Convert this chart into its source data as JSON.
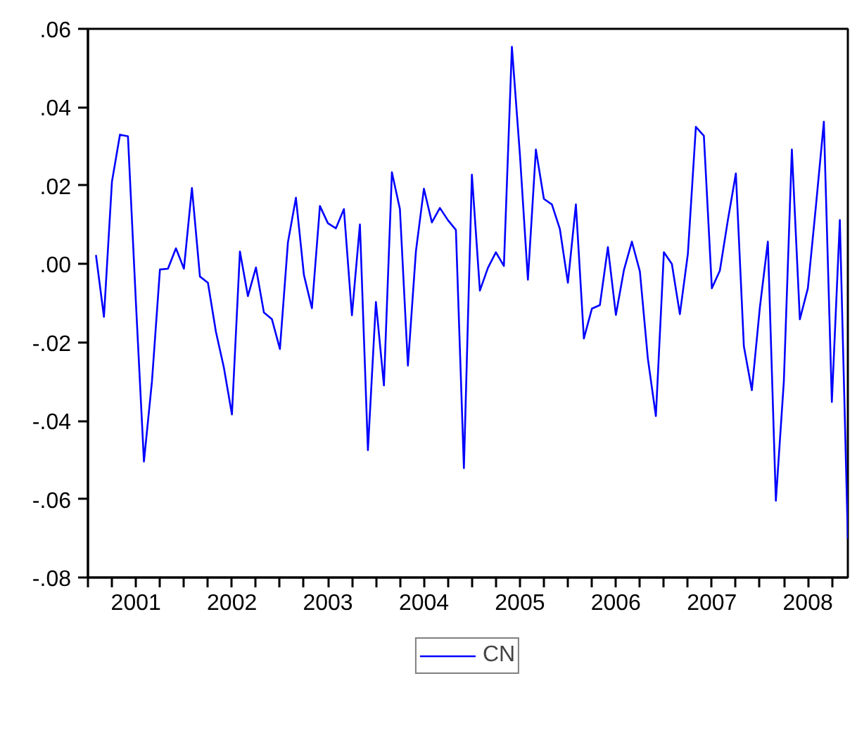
{
  "chart_data": {
    "type": "line",
    "x": [
      "2001-02",
      "2001-03",
      "2001-04",
      "2001-05",
      "2001-06",
      "2001-07",
      "2001-08",
      "2001-09",
      "2001-10",
      "2001-11",
      "2001-12",
      "2002-01",
      "2002-02",
      "2002-03",
      "2002-04",
      "2002-05",
      "2002-06",
      "2002-07",
      "2002-08",
      "2002-09",
      "2002-10",
      "2002-11",
      "2002-12",
      "2003-01",
      "2003-02",
      "2003-03",
      "2003-04",
      "2003-05",
      "2003-06",
      "2003-07",
      "2003-08",
      "2003-09",
      "2003-10",
      "2003-11",
      "2003-12",
      "2004-01",
      "2004-02",
      "2004-03",
      "2004-04",
      "2004-05",
      "2004-06",
      "2004-07",
      "2004-08",
      "2004-09",
      "2004-10",
      "2004-11",
      "2004-12",
      "2005-01",
      "2005-02",
      "2005-03",
      "2005-04",
      "2005-05",
      "2005-06",
      "2005-07",
      "2005-08",
      "2005-09",
      "2005-10",
      "2005-11",
      "2005-12",
      "2006-01",
      "2006-02",
      "2006-03",
      "2006-04",
      "2006-05",
      "2006-06",
      "2006-07",
      "2006-08",
      "2006-09",
      "2006-10",
      "2006-11",
      "2006-12",
      "2007-01",
      "2007-02",
      "2007-03",
      "2007-04",
      "2007-05",
      "2007-06",
      "2007-07",
      "2007-08",
      "2007-09",
      "2007-10",
      "2007-11",
      "2007-12",
      "2008-01",
      "2008-02",
      "2008-03",
      "2008-04",
      "2008-05",
      "2008-06",
      "2008-07",
      "2008-08",
      "2008-09",
      "2008-10",
      "2008-11",
      "2008-12"
    ],
    "series": [
      {
        "name": "CN",
        "color": "#0000ff",
        "values": [
          0.0023,
          -0.0135,
          0.021,
          0.033,
          0.0326,
          -0.01,
          -0.0504,
          -0.03,
          -0.0014,
          -0.0012,
          0.004,
          -0.0012,
          0.0194,
          -0.0032,
          -0.0048,
          -0.0173,
          -0.0265,
          -0.0384,
          0.0032,
          -0.0082,
          -0.0009,
          -0.0124,
          -0.0141,
          -0.0217,
          0.0055,
          0.0169,
          -0.0028,
          -0.0113,
          0.0148,
          0.0104,
          0.0091,
          0.014,
          -0.0131,
          0.0101,
          -0.0475,
          -0.0097,
          -0.031,
          0.0234,
          0.014,
          -0.0259,
          0.0032,
          0.0192,
          0.0106,
          0.0143,
          0.0112,
          0.0087,
          -0.0521,
          0.0228,
          -0.0068,
          -0.001,
          0.003,
          -0.0005,
          0.0554,
          0.028,
          -0.004,
          0.0292,
          0.0166,
          0.0152,
          0.0089,
          -0.0048,
          0.0152,
          -0.019,
          -0.0114,
          -0.0105,
          0.0043,
          -0.013,
          -0.0016,
          0.0057,
          -0.0019,
          -0.0242,
          -0.0388,
          0.003,
          0.0,
          -0.0128,
          0.0026,
          0.035,
          0.0327,
          -0.0062,
          -0.0017,
          0.0112,
          0.0231,
          -0.021,
          -0.0322,
          -0.0111,
          0.0057,
          -0.0604,
          -0.0299,
          0.0292,
          -0.0141,
          -0.0062,
          0.0146,
          0.0363,
          -0.0352,
          0.0112,
          -0.0701
        ]
      }
    ],
    "xlim": [
      "2001-01",
      "2008-12"
    ],
    "xticks": [
      {
        "value": "2001-01",
        "label": null
      },
      {
        "value": "2001-04",
        "label": null
      },
      {
        "value": "2001-07",
        "label": "2001"
      },
      {
        "value": "2001-10",
        "label": null
      },
      {
        "value": "2002-01",
        "label": null
      },
      {
        "value": "2002-04",
        "label": null
      },
      {
        "value": "2002-07",
        "label": "2002"
      },
      {
        "value": "2002-10",
        "label": null
      },
      {
        "value": "2003-01",
        "label": null
      },
      {
        "value": "2003-04",
        "label": null
      },
      {
        "value": "2003-07",
        "label": "2003"
      },
      {
        "value": "2003-10",
        "label": null
      },
      {
        "value": "2004-01",
        "label": null
      },
      {
        "value": "2004-04",
        "label": null
      },
      {
        "value": "2004-07",
        "label": "2004"
      },
      {
        "value": "2004-10",
        "label": null
      },
      {
        "value": "2005-01",
        "label": null
      },
      {
        "value": "2005-04",
        "label": null
      },
      {
        "value": "2005-07",
        "label": "2005"
      },
      {
        "value": "2005-10",
        "label": null
      },
      {
        "value": "2006-01",
        "label": null
      },
      {
        "value": "2006-04",
        "label": null
      },
      {
        "value": "2006-07",
        "label": "2006"
      },
      {
        "value": "2006-10",
        "label": null
      },
      {
        "value": "2007-01",
        "label": null
      },
      {
        "value": "2007-04",
        "label": null
      },
      {
        "value": "2007-07",
        "label": "2007"
      },
      {
        "value": "2007-10",
        "label": null
      },
      {
        "value": "2008-01",
        "label": null
      },
      {
        "value": "2008-04",
        "label": null
      },
      {
        "value": "2008-07",
        "label": "2008"
      },
      {
        "value": "2008-10",
        "label": null
      }
    ],
    "ylim": [
      -0.08,
      0.06
    ],
    "yticks": [
      {
        "value": -0.08,
        "label": "-.08"
      },
      {
        "value": -0.06,
        "label": "-.06"
      },
      {
        "value": -0.04,
        "label": "-.04"
      },
      {
        "value": -0.02,
        "label": "-.02"
      },
      {
        "value": 0.0,
        "label": ".00"
      },
      {
        "value": 0.02,
        "label": ".02"
      },
      {
        "value": 0.04,
        "label": ".04"
      },
      {
        "value": 0.06,
        "label": ".06"
      }
    ],
    "grid": false,
    "legend": "bottom",
    "marker": "none",
    "line_style": "solid"
  }
}
